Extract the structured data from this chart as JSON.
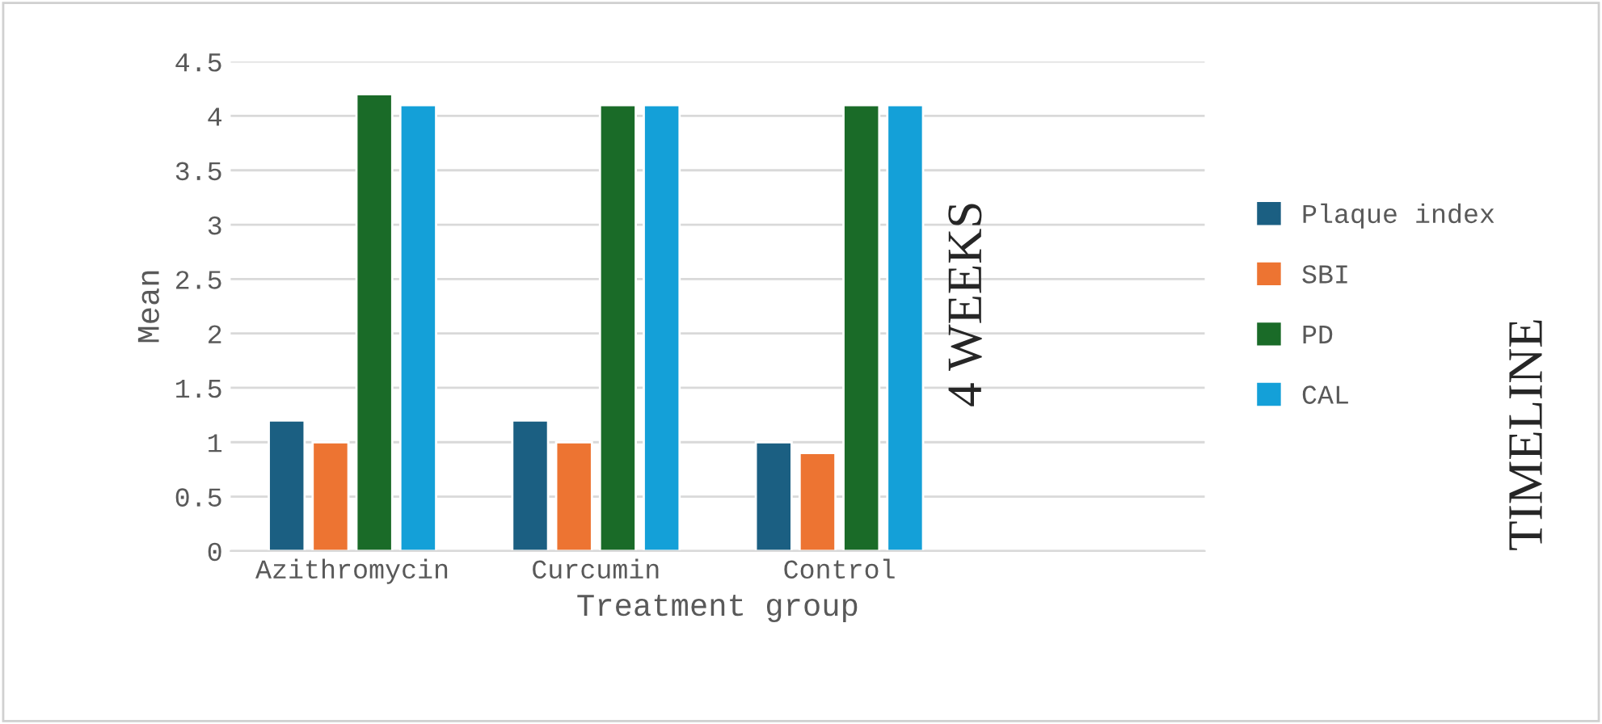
{
  "chart_data": {
    "type": "bar",
    "xlabel": "Treatment group",
    "ylabel": "Mean",
    "categories": [
      "Azithromycin",
      "Curcumin",
      "Control",
      null
    ],
    "series": [
      {
        "name": "Plaque index",
        "color": "#1b5f82",
        "values": [
          1.2,
          1.2,
          1.0,
          null
        ]
      },
      {
        "name": "SBI",
        "color": "#ed7432",
        "values": [
          1.0,
          1.0,
          0.9,
          null
        ]
      },
      {
        "name": "PD",
        "color": "#1a6b28",
        "values": [
          4.2,
          4.1,
          4.1,
          null
        ]
      },
      {
        "name": "CAL",
        "color": "#14a0d8",
        "values": [
          4.1,
          4.1,
          4.1,
          null
        ]
      }
    ],
    "ylim": [
      0,
      4.5
    ],
    "yticks": [
      0,
      0.5,
      1,
      1.5,
      2,
      2.5,
      3,
      3.5,
      4,
      4.5
    ],
    "grid": "y",
    "legend": "right",
    "annotations": [
      "4 WEEKS",
      "TIMELINE"
    ]
  }
}
